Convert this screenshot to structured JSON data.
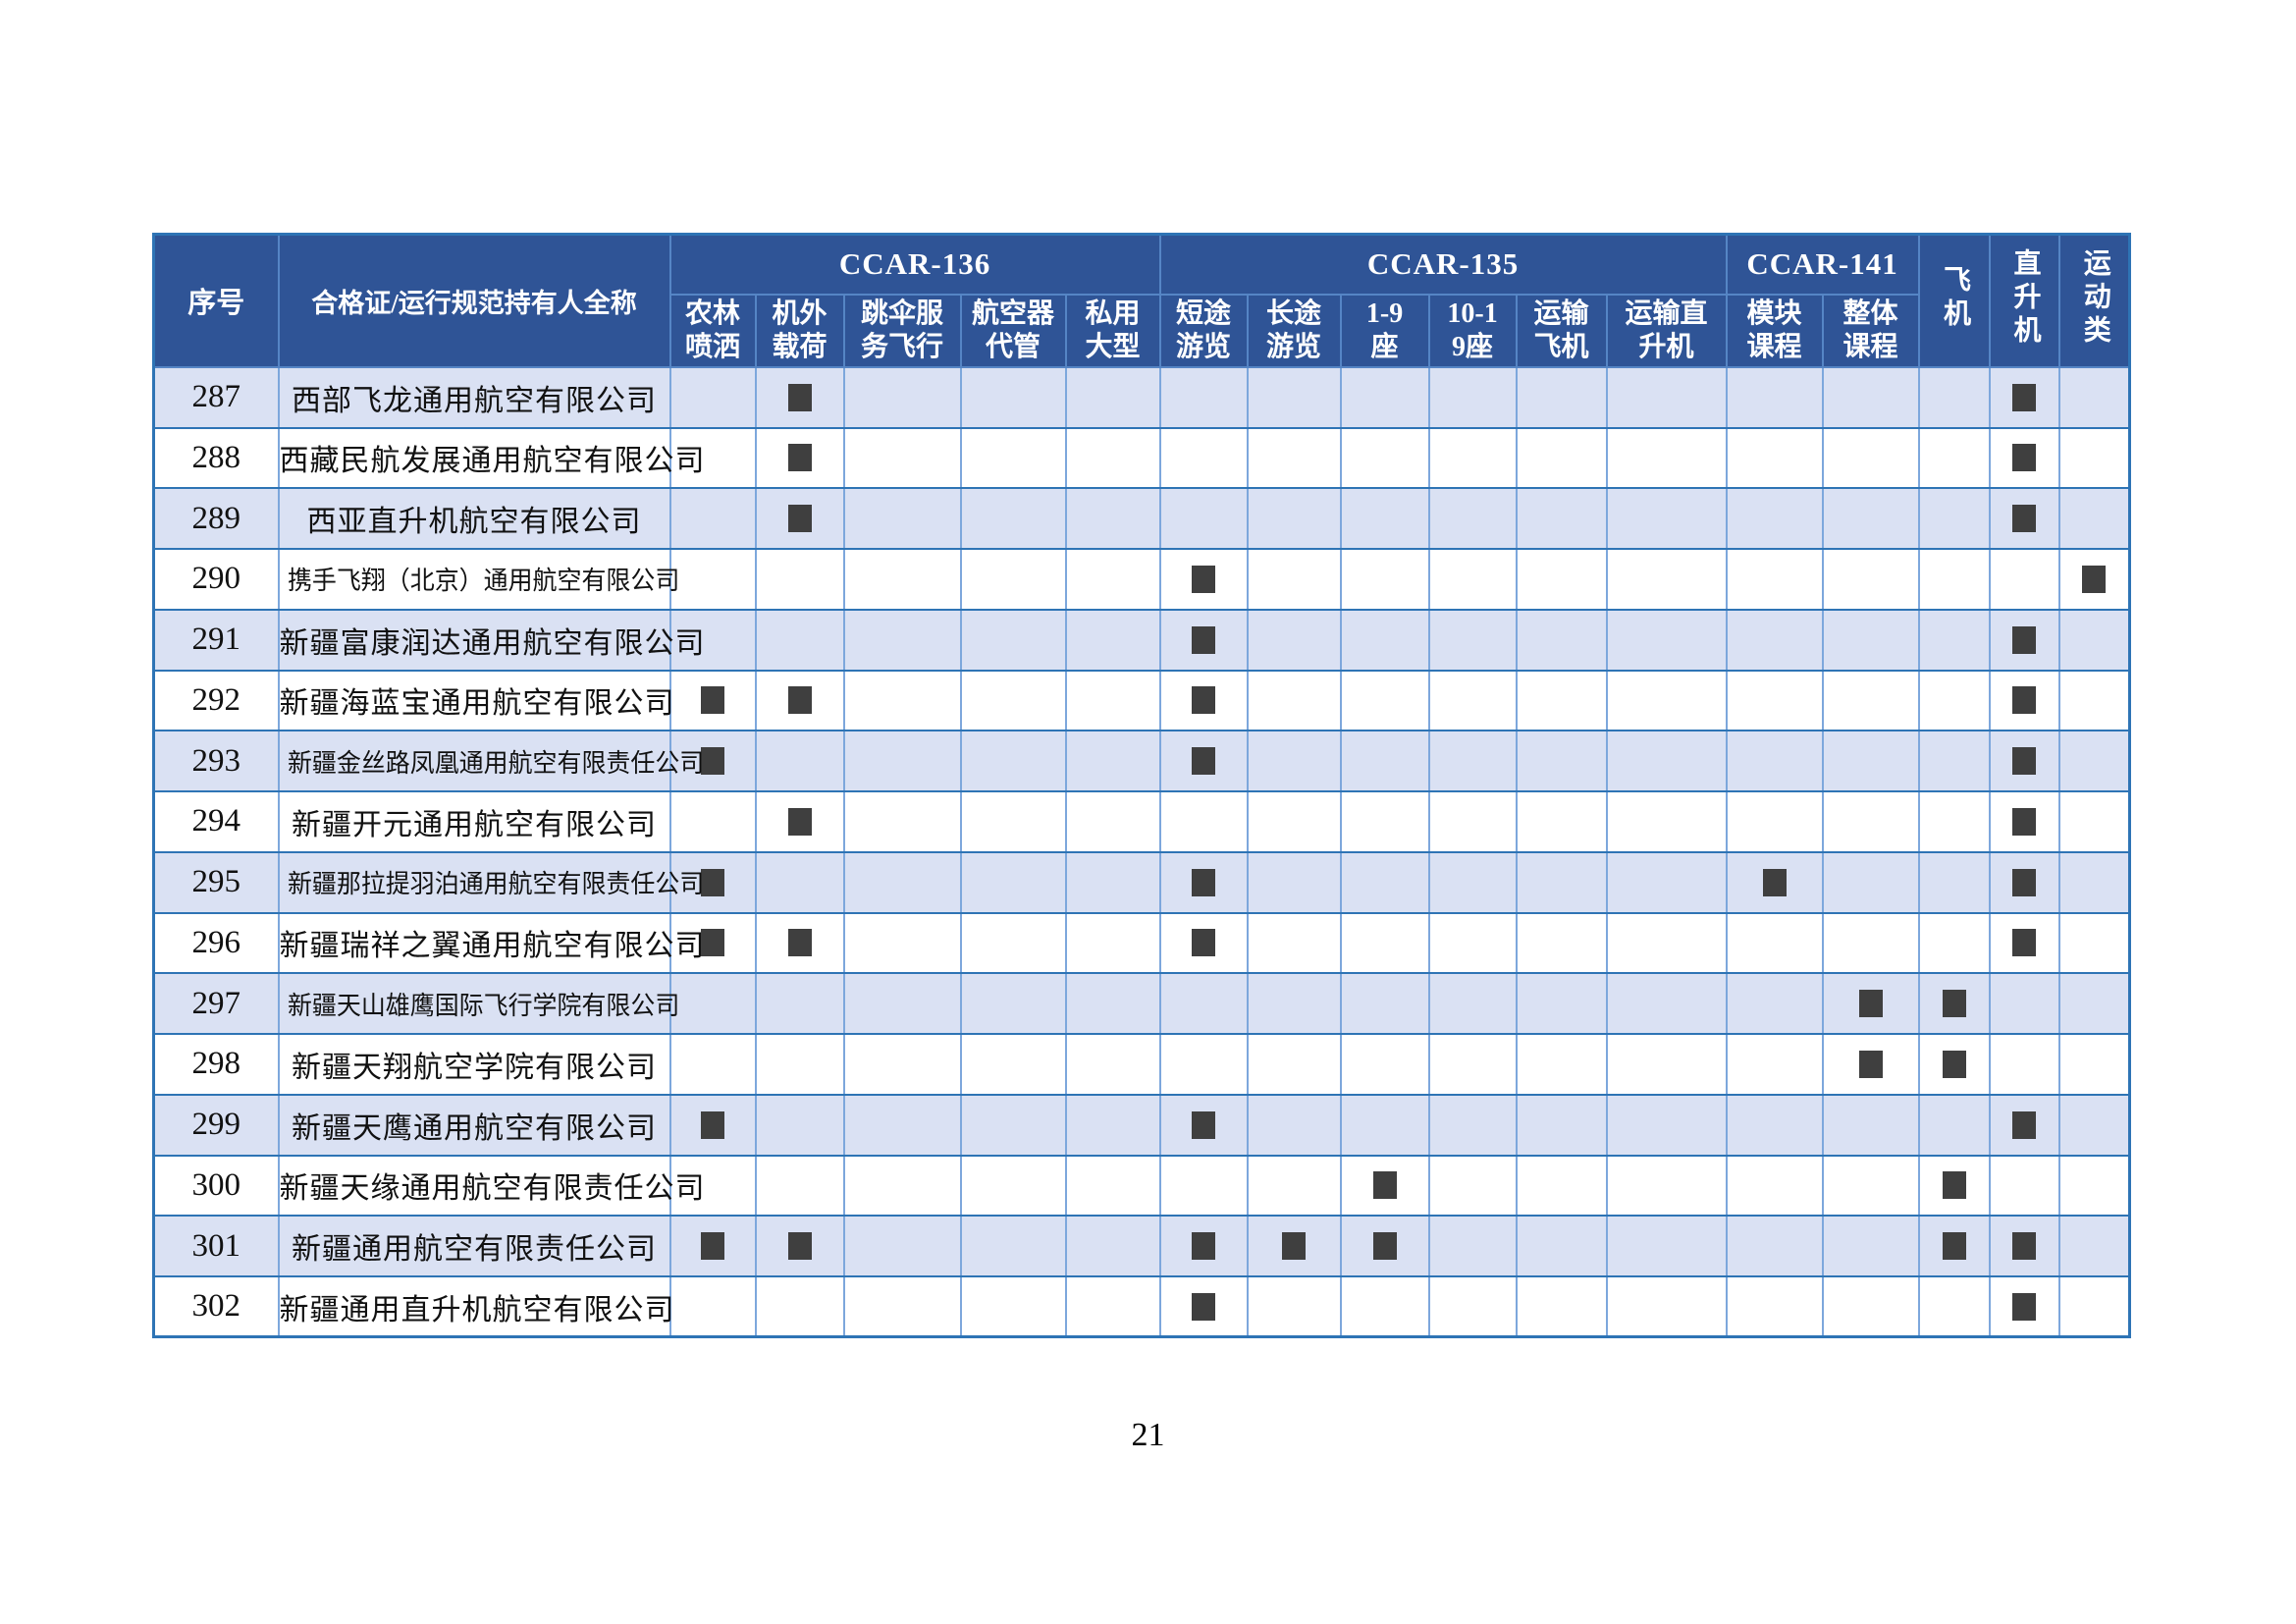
{
  "page_number": "21",
  "table": {
    "header": {
      "index_label": "序号",
      "name_label": "合格证/运行规范持有人全称",
      "groups": [
        {
          "label": "CCAR-136",
          "span": 5
        },
        {
          "label": "CCAR-135",
          "span": 6
        },
        {
          "label": "CCAR-141",
          "span": 2
        }
      ],
      "subheaders": [
        [
          "农林",
          "喷洒"
        ],
        [
          "机外",
          "载荷"
        ],
        [
          "跳伞服",
          "务飞行"
        ],
        [
          "航空器",
          "代管"
        ],
        [
          "私用",
          "大型"
        ],
        [
          "短途",
          "游览"
        ],
        [
          "长途",
          "游览"
        ],
        [
          "1-9",
          "座"
        ],
        [
          "10-1",
          "9座"
        ],
        [
          "运输",
          "飞机"
        ],
        [
          "运输直",
          "升机"
        ],
        [
          "模块",
          "课程"
        ],
        [
          "整体",
          "课程"
        ]
      ],
      "vertical_headers": [
        "飞机",
        "直升机",
        "运动类"
      ]
    },
    "check_columns": [
      "农林喷洒",
      "机外载荷",
      "跳伞服务飞行",
      "航空器代管",
      "私用大型",
      "短途游览",
      "长途游览",
      "1-9座",
      "10-19座",
      "运输飞机",
      "运输直升机",
      "模块课程",
      "整体课程",
      "飞机",
      "直升机",
      "运动类"
    ],
    "rows": [
      {
        "no": "287",
        "name": "西部飞龙通用航空有限公司",
        "checks": [
          "机外载荷",
          "直升机"
        ]
      },
      {
        "no": "288",
        "name": "西藏民航发展通用航空有限公司",
        "checks": [
          "机外载荷",
          "直升机"
        ]
      },
      {
        "no": "289",
        "name": "西亚直升机航空有限公司",
        "checks": [
          "机外载荷",
          "直升机"
        ]
      },
      {
        "no": "290",
        "name": "携手飞翔（北京）通用航空有限公司",
        "checks": [
          "短途游览",
          "运动类"
        ]
      },
      {
        "no": "291",
        "name": "新疆富康润达通用航空有限公司",
        "checks": [
          "短途游览",
          "直升机"
        ]
      },
      {
        "no": "292",
        "name": "新疆海蓝宝通用航空有限公司",
        "checks": [
          "农林喷洒",
          "机外载荷",
          "短途游览",
          "直升机"
        ]
      },
      {
        "no": "293",
        "name": "新疆金丝路凤凰通用航空有限责任公司",
        "checks": [
          "农林喷洒",
          "短途游览",
          "直升机"
        ]
      },
      {
        "no": "294",
        "name": "新疆开元通用航空有限公司",
        "checks": [
          "机外载荷",
          "直升机"
        ]
      },
      {
        "no": "295",
        "name": "新疆那拉提羽泊通用航空有限责任公司",
        "checks": [
          "农林喷洒",
          "短途游览",
          "模块课程",
          "直升机"
        ]
      },
      {
        "no": "296",
        "name": "新疆瑞祥之翼通用航空有限公司",
        "checks": [
          "农林喷洒",
          "机外载荷",
          "短途游览",
          "直升机"
        ]
      },
      {
        "no": "297",
        "name": "新疆天山雄鹰国际飞行学院有限公司",
        "checks": [
          "整体课程",
          "飞机"
        ]
      },
      {
        "no": "298",
        "name": "新疆天翔航空学院有限公司",
        "checks": [
          "整体课程",
          "飞机"
        ]
      },
      {
        "no": "299",
        "name": "新疆天鹰通用航空有限公司",
        "checks": [
          "农林喷洒",
          "短途游览",
          "直升机"
        ]
      },
      {
        "no": "300",
        "name": "新疆天缘通用航空有限责任公司",
        "checks": [
          "1-9座",
          "飞机"
        ]
      },
      {
        "no": "301",
        "name": "新疆通用航空有限责任公司",
        "checks": [
          "农林喷洒",
          "机外载荷",
          "短途游览",
          "长途游览",
          "1-9座",
          "飞机",
          "直升机"
        ]
      },
      {
        "no": "302",
        "name": "新疆通用直升机航空有限公司",
        "checks": [
          "短途游览",
          "直升机"
        ]
      }
    ]
  },
  "colors": {
    "header_bg": "#2f5496",
    "row_alt_bg": "#dae1f3",
    "grid_h": "#2e74b5",
    "grid_v": "#7da7dc",
    "check": "#3f3f3f"
  }
}
